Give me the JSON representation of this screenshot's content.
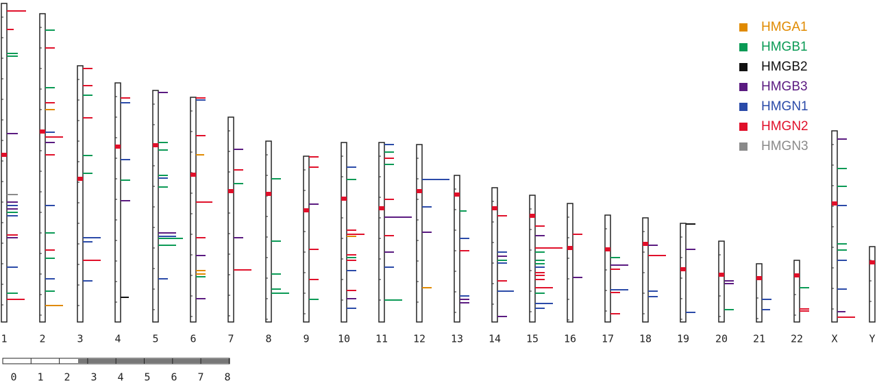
{
  "chromosomes": [
    "1",
    "2",
    "3",
    "4",
    "5",
    "6",
    "7",
    "8",
    "9",
    "10",
    "11",
    "12",
    "13",
    "14",
    "15",
    "16",
    "17",
    "18",
    "19",
    "20",
    "21",
    "22",
    "X",
    "Y"
  ],
  "legend": [
    {
      "label": "HMGA1",
      "color": "#e08a00"
    },
    {
      "label": "HMGB1",
      "color": "#0a9a55"
    },
    {
      "label": "HMGB2",
      "color": "#111111"
    },
    {
      "label": "HMGB3",
      "color": "#5a1a80"
    },
    {
      "label": "HMGN1",
      "color": "#2a4aa8"
    },
    {
      "label": "HMGN2",
      "color": "#e0102a"
    },
    {
      "label": "HMGN3",
      "color": "#8a8a8a"
    }
  ],
  "scale": {
    "labels": [
      "0",
      "1",
      "2",
      "3",
      "4",
      "5",
      "6",
      "7",
      "8"
    ]
  }
}
